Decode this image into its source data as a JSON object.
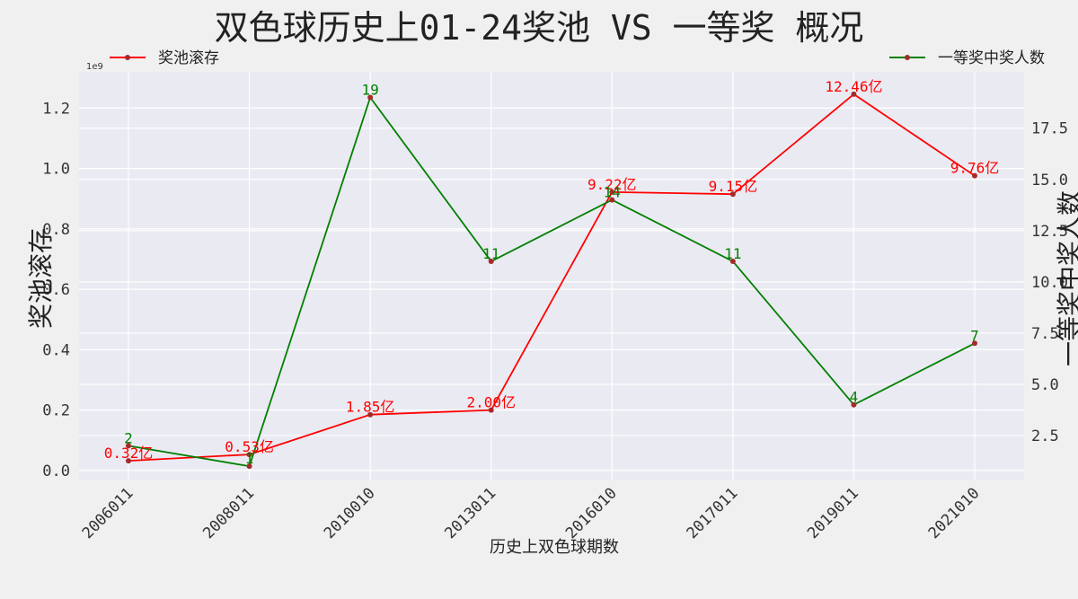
{
  "chart_data": {
    "type": "line",
    "title": "双色球历史上01-24奖池 VS 一等奖 概况",
    "xlabel": "历史上双色球期数",
    "ylabel": "奖池滚存",
    "y2label": "一等奖中奖人数",
    "y_offset_text": "1e9",
    "categories": [
      "2006011",
      "2008011",
      "2010010",
      "2013011",
      "2016010",
      "2017011",
      "2019011",
      "2021010"
    ],
    "ylim": [
      -0.03,
      1.32
    ],
    "y2lim": [
      0.35,
      20.25
    ],
    "yticks": [
      0.0,
      0.2,
      0.4,
      0.6,
      0.8,
      1.0,
      1.2
    ],
    "ytick_labels": [
      "0.0",
      "0.2",
      "0.4",
      "0.6",
      "0.8",
      "1.0",
      "1.2"
    ],
    "y2ticks": [
      2.5,
      5.0,
      7.5,
      10.0,
      12.5,
      15.0,
      17.5
    ],
    "y2tick_labels": [
      "2.5",
      "5.0",
      "7.5",
      "10.0",
      "12.5",
      "15.0",
      "17.5"
    ],
    "grid": true,
    "series": [
      {
        "name": "奖池滚存",
        "axis": "left",
        "color": "#ff0000",
        "values": [
          0.032,
          0.053,
          0.185,
          0.2,
          0.922,
          0.915,
          1.246,
          0.976
        ],
        "labels": [
          "0.32亿",
          "0.53亿",
          "1.85亿",
          "2.00亿",
          "9.22亿",
          "9.15亿",
          "12.46亿",
          "9.76亿"
        ],
        "legend_position": "top-left"
      },
      {
        "name": "一等奖中奖人数",
        "axis": "right",
        "color": "#008000",
        "values": [
          2,
          1,
          19,
          11,
          14,
          11,
          4,
          7
        ],
        "labels": [
          "2",
          "1",
          "19",
          "11",
          "14",
          "11",
          "4",
          "7"
        ],
        "legend_position": "top-right"
      }
    ],
    "marker_color": "#a52a2a"
  }
}
